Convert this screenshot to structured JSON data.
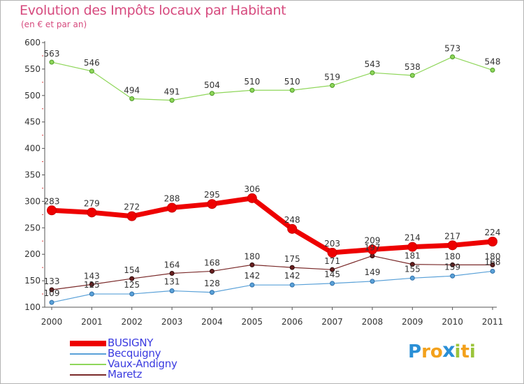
{
  "title": "Evolution des Impôts locaux par Habitant",
  "subtitle": "(en € et par an)",
  "logo": {
    "letters": [
      "P",
      "r",
      "o",
      "x",
      "i",
      "t",
      "i"
    ],
    "colors": [
      "#2a8fd6",
      "#f3a11c",
      "#f3a11c",
      "#2a8fd6",
      "#9bc43a",
      "#f3a11c",
      "#9bc43a"
    ]
  },
  "chart_data": {
    "type": "line",
    "categories": [
      "2000",
      "2001",
      "2002",
      "2003",
      "2004",
      "2005",
      "2006",
      "2007",
      "2008",
      "2009",
      "2010",
      "2011"
    ],
    "y_ticks": [
      "100",
      "150",
      "200",
      "250",
      "300",
      "350",
      "400",
      "450",
      "500",
      "550",
      "600"
    ],
    "ylim": [
      100,
      600
    ],
    "grid": false,
    "legend_position": "bottom-left",
    "series": [
      {
        "name": "BUSIGNY",
        "color": "#ee0000",
        "values": [
          283,
          279,
          272,
          288,
          295,
          306,
          248,
          203,
          209,
          214,
          217,
          224
        ]
      },
      {
        "name": "Becquigny",
        "color": "#5aa1d8",
        "values": [
          109,
          125,
          125,
          131,
          128,
          142,
          142,
          145,
          149,
          155,
          159,
          168
        ]
      },
      {
        "name": "Vaux-Andigny",
        "color": "#8fd65a",
        "values": [
          563,
          546,
          494,
          491,
          504,
          510,
          510,
          519,
          543,
          538,
          573,
          548
        ]
      },
      {
        "name": "Maretz",
        "color": "#7a2a2a",
        "values": [
          133,
          143,
          154,
          164,
          168,
          180,
          175,
          171,
          197,
          181,
          180,
          180
        ]
      }
    ]
  }
}
